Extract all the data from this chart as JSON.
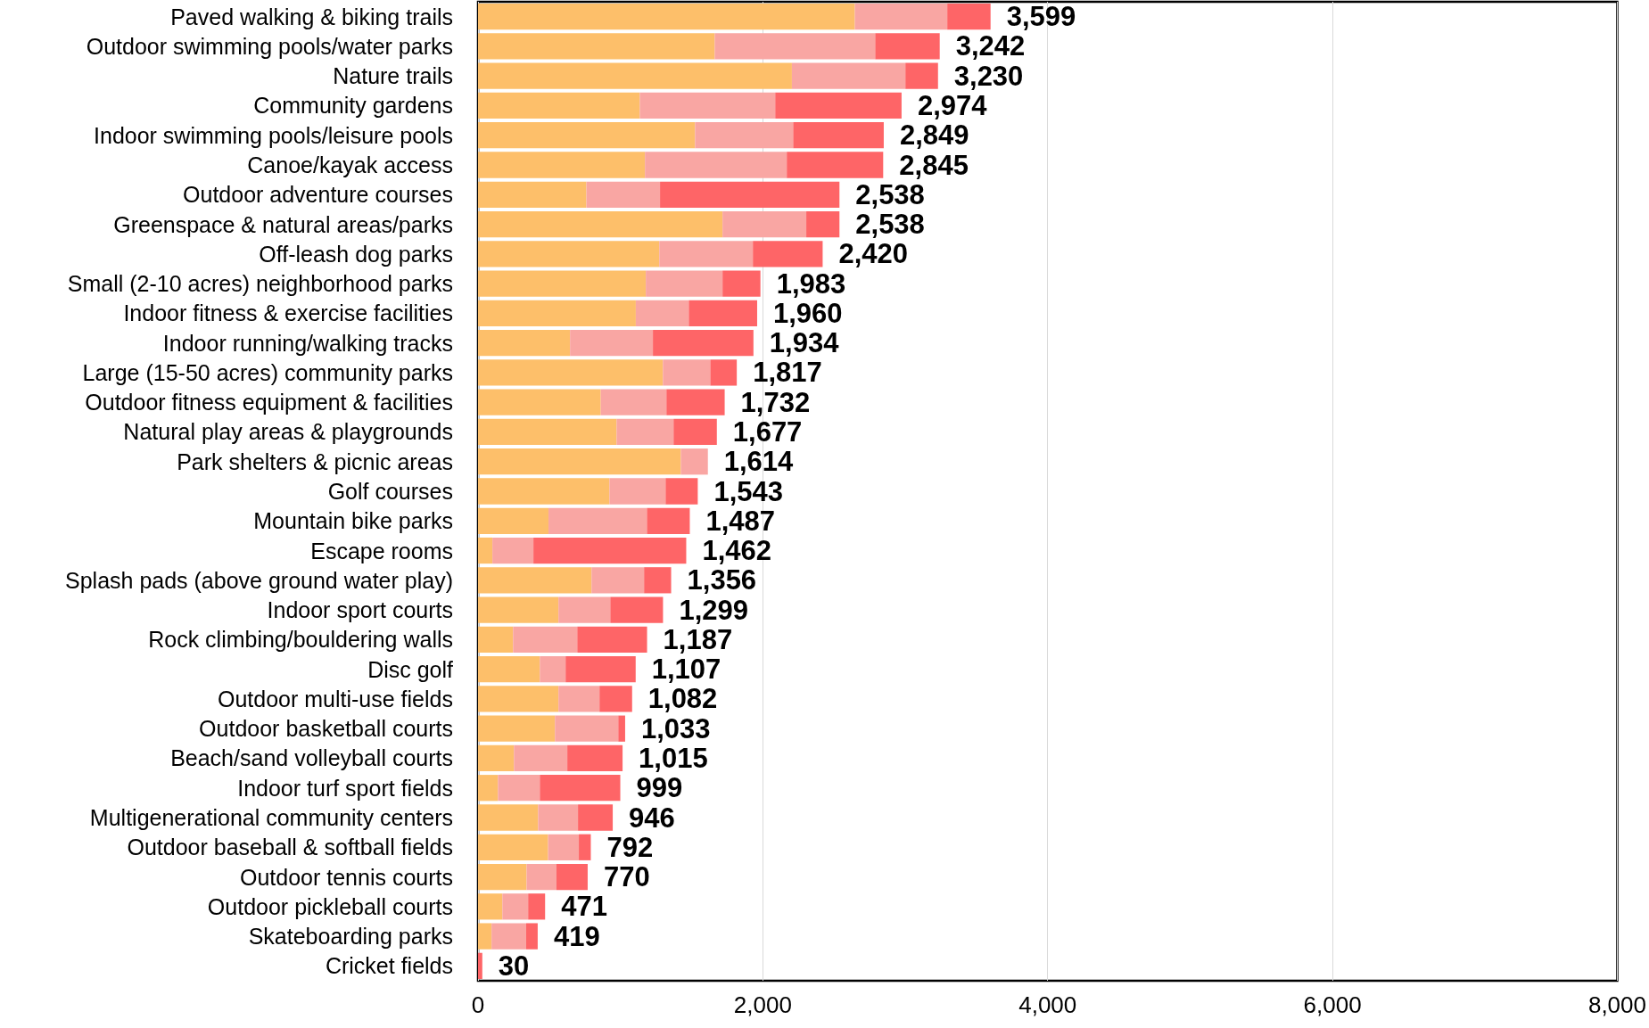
{
  "chart_data": {
    "type": "bar",
    "orientation": "horizontal",
    "stacked": true,
    "categories": [
      "Paved walking & biking trails",
      "Outdoor swimming pools/water parks",
      "Nature trails",
      "Community gardens",
      "Indoor swimming pools/leisure pools",
      "Canoe/kayak access",
      "Outdoor adventure courses",
      "Greenspace & natural areas/parks",
      "Off-leash dog parks",
      "Small (2-10 acres) neighborhood parks",
      "Indoor fitness & exercise facilities",
      "Indoor running/walking tracks",
      "Large (15-50 acres) community parks",
      "Outdoor fitness equipment & facilities",
      "Natural play areas & playgrounds",
      "Park shelters & picnic areas",
      "Golf courses",
      "Mountain bike parks",
      "Escape rooms",
      "Splash pads (above ground water play)",
      "Indoor sport courts",
      "Rock climbing/bouldering walls",
      "Disc golf",
      "Outdoor multi-use fields",
      "Outdoor basketball courts",
      "Beach/sand volleyball courts",
      "Indoor turf sport fields",
      "Multigenerational community centers",
      "Outdoor baseball & softball fields",
      "Outdoor tennis courts",
      "Outdoor pickleball courts",
      "Skateboarding parks",
      "Cricket fields"
    ],
    "series": [
      {
        "color": "#fdbf6a",
        "values": [
          2646,
          1662,
          2204,
          1136,
          1524,
          1172,
          761,
          1717,
          1273,
          1178,
          1108,
          646,
          1298,
          862,
          973,
          1424,
          923,
          495,
          101,
          797,
          565,
          246,
          434,
          565,
          540,
          252,
          140,
          422,
          492,
          341,
          171,
          95,
          0
        ]
      },
      {
        "color": "#f9a6a3",
        "values": [
          649,
          1127,
          797,
          951,
          689,
          996,
          517,
          588,
          657,
          539,
          372,
          582,
          333,
          461,
          400,
          190,
          394,
          691,
          288,
          369,
          364,
          451,
          181,
          288,
          445,
          375,
          294,
          280,
          216,
          210,
          181,
          243,
          0
        ]
      },
      {
        "color": "#fe6567",
        "values": [
          304,
          453,
          229,
          887,
          636,
          677,
          1260,
          233,
          490,
          266,
          480,
          706,
          186,
          409,
          304,
          0,
          226,
          301,
          1073,
          190,
          370,
          490,
          492,
          229,
          48,
          388,
          565,
          244,
          84,
          219,
          119,
          81,
          30
        ]
      }
    ],
    "totals": [
      "3,599",
      "3,242",
      "3,230",
      "2,974",
      "2,849",
      "2,845",
      "2,538",
      "2,538",
      "2,420",
      "1,983",
      "1,960",
      "1,934",
      "1,817",
      "1,732",
      "1,677",
      "1,614",
      "1,543",
      "1,487",
      "1,462",
      "1,356",
      "1,299",
      "1,187",
      "1,107",
      "1,082",
      "1,033",
      "1,015",
      "999",
      "946",
      "792",
      "770",
      "471",
      "419",
      "30"
    ],
    "xlim": [
      0,
      8000
    ],
    "xticks": [
      {
        "value": 0,
        "label": "0"
      },
      {
        "value": 2000,
        "label": "2,000"
      },
      {
        "value": 4000,
        "label": "4,000"
      },
      {
        "value": 6000,
        "label": "6,000"
      },
      {
        "value": 8000,
        "label": "8,000"
      }
    ],
    "grid": "x"
  }
}
